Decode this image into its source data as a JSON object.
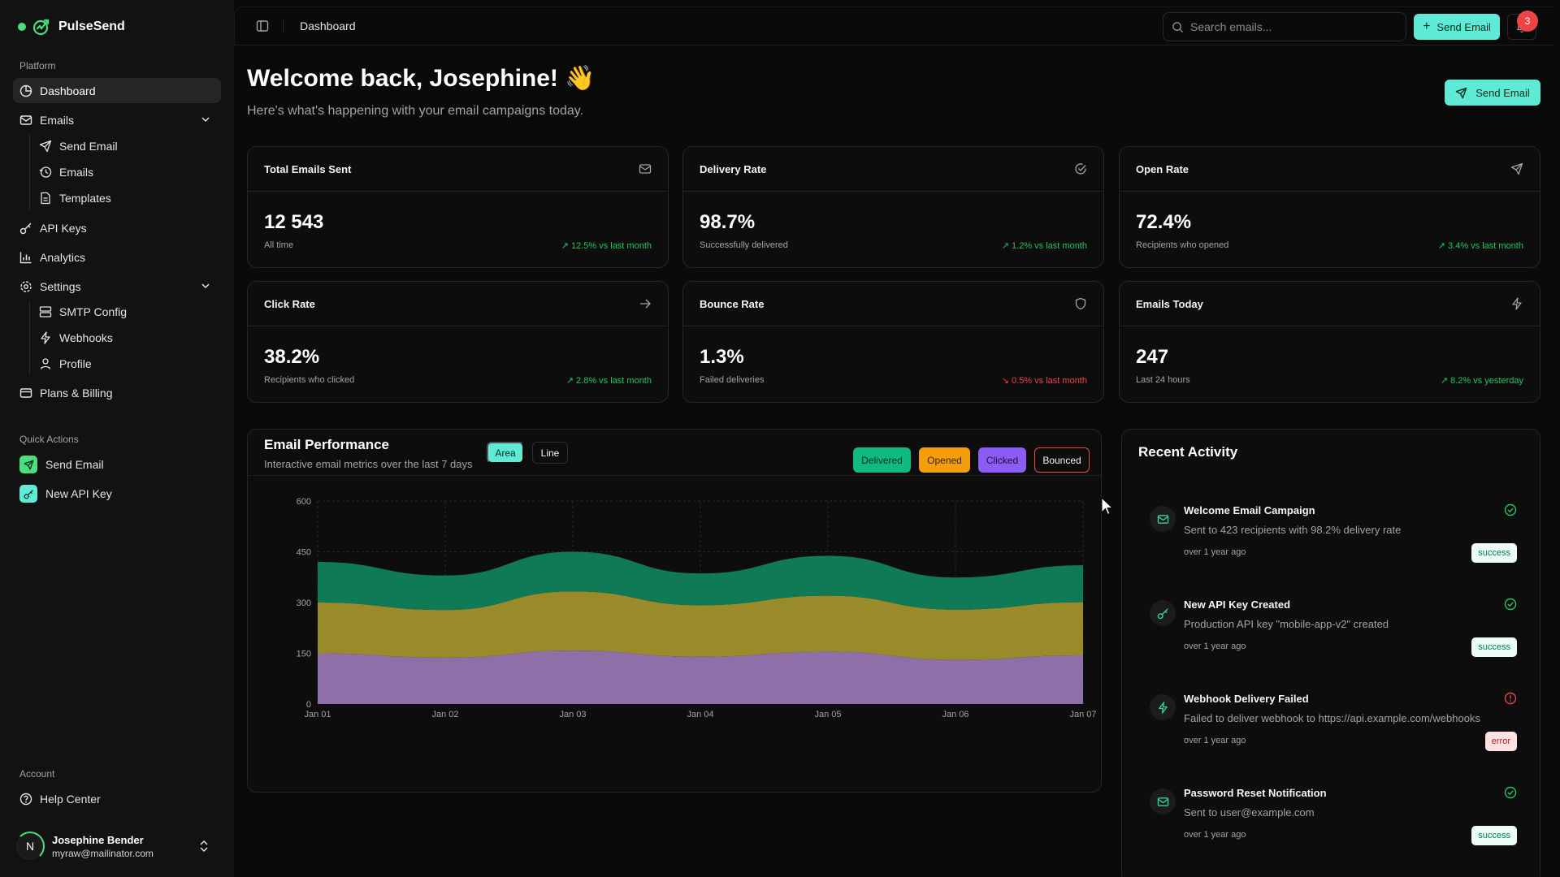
{
  "brand": {
    "name": "PulseSend"
  },
  "sidebar": {
    "platform_label": "Platform",
    "items": [
      {
        "label": "Dashboard",
        "icon": "dashboard-icon"
      },
      {
        "label": "Emails",
        "icon": "mail-icon"
      },
      {
        "label": "API Keys",
        "icon": "key-icon"
      },
      {
        "label": "Analytics",
        "icon": "chart-icon"
      },
      {
        "label": "Settings",
        "icon": "settings-icon"
      },
      {
        "label": "Plans & Billing",
        "icon": "credit-card-icon"
      }
    ],
    "email_sub": [
      {
        "label": "Send Email",
        "icon": "send-icon"
      },
      {
        "label": "Emails",
        "icon": "history-icon"
      },
      {
        "label": "Templates",
        "icon": "file-icon"
      }
    ],
    "settings_sub": [
      {
        "label": "SMTP Config",
        "icon": "server-icon"
      },
      {
        "label": "Webhooks",
        "icon": "webhook-icon"
      },
      {
        "label": "Profile",
        "icon": "user-icon"
      }
    ],
    "quick_label": "Quick Actions",
    "quick": [
      {
        "label": "Send Email",
        "icon": "send-icon"
      },
      {
        "label": "New API Key",
        "icon": "key-icon"
      }
    ],
    "account_label": "Account",
    "help": "Help Center",
    "user": {
      "initial": "N",
      "name": "Josephine Bender",
      "email": "myraw@mailinator.com"
    }
  },
  "topbar": {
    "title": "Dashboard",
    "search_placeholder": "Search emails...",
    "send_label": "Send Email",
    "notifications": "3"
  },
  "header": {
    "welcome": "Welcome back, Josephine! 👋",
    "subtitle": "Here's what's happening with your email campaigns today.",
    "send_label": "Send Email"
  },
  "stats": [
    {
      "title": "Total Emails Sent",
      "value": "12 543",
      "sub": "All time",
      "trend": "↗ 12.5% vs last month",
      "direction": "up"
    },
    {
      "title": "Delivery Rate",
      "value": "98.7%",
      "sub": "Successfully delivered",
      "trend": "↗ 1.2% vs last month",
      "direction": "up"
    },
    {
      "title": "Open Rate",
      "value": "72.4%",
      "sub": "Recipients who opened",
      "trend": "↗ 3.4% vs last month",
      "direction": "up"
    },
    {
      "title": "Click Rate",
      "value": "38.2%",
      "sub": "Recipients who clicked",
      "trend": "↗ 2.8% vs last month",
      "direction": "up"
    },
    {
      "title": "Bounce Rate",
      "value": "1.3%",
      "sub": "Failed deliveries",
      "trend": "↘ 0.5% vs last month",
      "direction": "down"
    },
    {
      "title": "Emails Today",
      "value": "247",
      "sub": "Last 24 hours",
      "trend": "↗ 8.2% vs yesterday",
      "direction": "up"
    }
  ],
  "performance": {
    "title": "Email Performance",
    "subtitle": "Interactive email metrics over the last 7 days",
    "toggle": {
      "area": "Area",
      "line": "Line"
    },
    "legend": {
      "delivered": "Delivered",
      "opened": "Opened",
      "clicked": "Clicked",
      "bounced": "Bounced"
    }
  },
  "chart_data": {
    "type": "area",
    "stacked": true,
    "categories": [
      "Jan 01",
      "Jan 02",
      "Jan 03",
      "Jan 04",
      "Jan 05",
      "Jan 06",
      "Jan 07"
    ],
    "series": [
      {
        "name": "Clicked",
        "values": [
          150,
          137,
          158,
          140,
          155,
          131,
          144
        ],
        "color": "#8e6fa8"
      },
      {
        "name": "Opened",
        "values": [
          150,
          141,
          175,
          152,
          165,
          148,
          157
        ],
        "color": "#998a2a"
      },
      {
        "name": "Delivered",
        "values": [
          120,
          102,
          117,
          94,
          118,
          95,
          109
        ],
        "color": "#107a56"
      }
    ],
    "yticks": [
      0,
      150,
      300,
      450,
      600
    ],
    "ylim": [
      0,
      600
    ],
    "grid": true
  },
  "recent": {
    "title": "Recent Activity",
    "items": [
      {
        "title": "Welcome Email Campaign",
        "desc": "Sent to 423 recipients with 98.2% delivery rate",
        "time": "over 1 year ago",
        "badge": "success",
        "icon": "mail-icon"
      },
      {
        "title": "New API Key Created",
        "desc": "Production API key \"mobile-app-v2\" created",
        "time": "over 1 year ago",
        "badge": "success",
        "icon": "key-icon"
      },
      {
        "title": "Webhook Delivery Failed",
        "desc": "Failed to deliver webhook to https://api.example.com/webhooks",
        "time": "over 1 year ago",
        "badge": "error",
        "icon": "webhook-icon"
      },
      {
        "title": "Password Reset Notification",
        "desc": "Sent to user@example.com",
        "time": "over 1 year ago",
        "badge": "success",
        "icon": "mail-icon"
      }
    ]
  }
}
